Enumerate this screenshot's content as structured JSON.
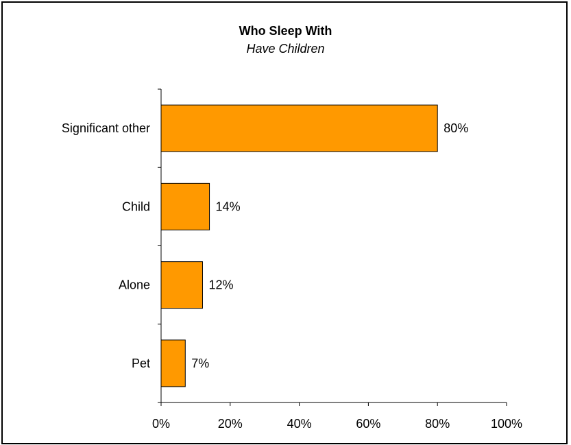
{
  "chart_data": {
    "type": "bar",
    "orientation": "horizontal",
    "title": "Who Sleep With",
    "subtitle": "Have Children",
    "categories": [
      "Significant other",
      "Child",
      "Alone",
      "Pet"
    ],
    "values": [
      80,
      14,
      12,
      7
    ],
    "value_labels": [
      "80%",
      "14%",
      "12%",
      "7%"
    ],
    "xlim": [
      0,
      100
    ],
    "x_ticks": [
      0,
      20,
      40,
      60,
      80,
      100
    ],
    "x_tick_labels": [
      "0%",
      "20%",
      "40%",
      "60%",
      "80%",
      "100%"
    ],
    "grid": false,
    "legend": "none",
    "colors": {
      "bar_fill": "#FF9900",
      "bar_stroke": "#000000"
    }
  }
}
